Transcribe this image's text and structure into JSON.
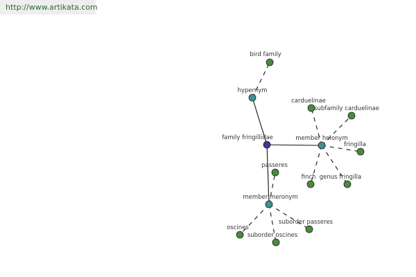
{
  "site_url": "http://www.artikata.com",
  "colors": {
    "center": "#3b3b8f",
    "relation": "#3f8f96",
    "leaf": "#4a8a3e"
  },
  "graph": {
    "nodes": [
      {
        "id": "center",
        "label": "family fringillidae",
        "kind": "center"
      },
      {
        "id": "hypernym",
        "label": "hypernym",
        "kind": "relation"
      },
      {
        "id": "holonym",
        "label": "member holonym",
        "kind": "relation"
      },
      {
        "id": "meronym",
        "label": "member meronym",
        "kind": "relation"
      },
      {
        "id": "birdfamily",
        "label": "bird family",
        "kind": "leaf"
      },
      {
        "id": "carduelinae",
        "label": "carduelinae",
        "kind": "leaf"
      },
      {
        "id": "subfamily",
        "label": "subfamily carduelinae",
        "kind": "leaf"
      },
      {
        "id": "fringilla",
        "label": "fringilla",
        "kind": "leaf"
      },
      {
        "id": "finch",
        "label": "finch",
        "kind": "leaf"
      },
      {
        "id": "genus",
        "label": "genus fringilla",
        "kind": "leaf"
      },
      {
        "id": "passeres",
        "label": "passeres",
        "kind": "leaf"
      },
      {
        "id": "oscines",
        "label": "oscines",
        "kind": "leaf"
      },
      {
        "id": "suboscines",
        "label": "suborder oscines",
        "kind": "leaf"
      },
      {
        "id": "subpasseres",
        "label": "suborder passeres",
        "kind": "leaf"
      }
    ],
    "edges": [
      {
        "from": "center",
        "to": "hypernym",
        "style": "solid"
      },
      {
        "from": "center",
        "to": "holonym",
        "style": "solid"
      },
      {
        "from": "center",
        "to": "meronym",
        "style": "solid"
      },
      {
        "from": "hypernym",
        "to": "birdfamily",
        "style": "dashed"
      },
      {
        "from": "holonym",
        "to": "carduelinae",
        "style": "dashed"
      },
      {
        "from": "holonym",
        "to": "subfamily",
        "style": "dashed"
      },
      {
        "from": "holonym",
        "to": "fringilla",
        "style": "dashed"
      },
      {
        "from": "holonym",
        "to": "finch",
        "style": "dashed"
      },
      {
        "from": "holonym",
        "to": "genus",
        "style": "dashed"
      },
      {
        "from": "meronym",
        "to": "passeres",
        "style": "dashed"
      },
      {
        "from": "meronym",
        "to": "oscines",
        "style": "dashed"
      },
      {
        "from": "meronym",
        "to": "suboscines",
        "style": "dashed"
      },
      {
        "from": "meronym",
        "to": "subpasseres",
        "style": "dashed"
      }
    ]
  }
}
